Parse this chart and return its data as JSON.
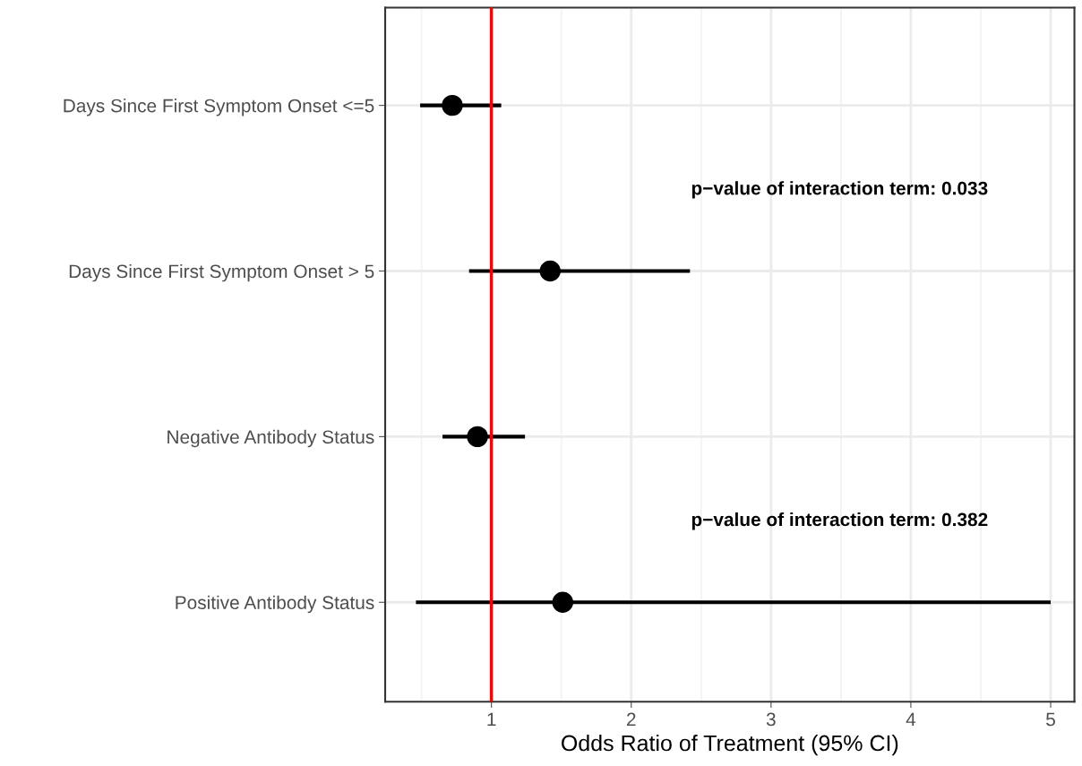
{
  "chart_data": {
    "type": "scatter",
    "orientation": "horizontal",
    "xlabel": "Odds Ratio of Treatment (95% CI)",
    "categories": [
      "Days Since First Symptom Onset <=5",
      "Days Since First Symptom Onset > 5",
      "Negative Antibody Status",
      "Positive Antibody Status"
    ],
    "series": [
      {
        "color": "#000000",
        "values": [
          0.72,
          1.42,
          0.9,
          1.51
        ],
        "errors": [
          [
            0.49,
            1.07
          ],
          [
            0.84,
            2.42
          ],
          [
            0.65,
            1.24
          ],
          [
            0.46,
            5.0
          ]
        ]
      }
    ],
    "xlim": [
      0.24,
      5.17
    ],
    "xticks": [
      1,
      2,
      3,
      4,
      5
    ],
    "ref_lines": [
      {
        "axis": "x",
        "value": 1,
        "color": "#ff0000"
      }
    ],
    "annotations": [
      "p−value of interaction term: 0.033",
      "p−value of interaction term: 0.382"
    ],
    "grid": true,
    "marker": "circle",
    "legend": false
  }
}
